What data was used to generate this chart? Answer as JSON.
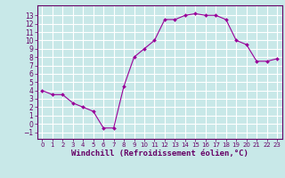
{
  "x": [
    0,
    1,
    2,
    3,
    4,
    5,
    6,
    7,
    8,
    9,
    10,
    11,
    12,
    13,
    14,
    15,
    16,
    17,
    18,
    19,
    20,
    21,
    22,
    23
  ],
  "y": [
    4.0,
    3.5,
    3.5,
    2.5,
    2.0,
    1.5,
    -0.5,
    -0.5,
    4.5,
    8.0,
    9.0,
    10.0,
    12.5,
    12.5,
    13.0,
    13.2,
    13.0,
    13.0,
    12.5,
    10.0,
    9.5,
    7.5,
    7.5,
    7.8
  ],
  "line_color": "#990099",
  "marker": "D",
  "marker_size": 2.0,
  "bg_color": "#c8e8e8",
  "grid_color": "#ffffff",
  "ylabel_ticks": [
    -1,
    0,
    1,
    2,
    3,
    4,
    5,
    6,
    7,
    8,
    9,
    10,
    11,
    12,
    13
  ],
  "xlabel": "Windchill (Refroidissement éolien,°C)",
  "xlim": [
    -0.5,
    23.5
  ],
  "ylim": [
    -1.8,
    14.2
  ],
  "label_color": "#660066",
  "tick_fontsize": 5.5,
  "xlabel_fontsize": 6.5
}
